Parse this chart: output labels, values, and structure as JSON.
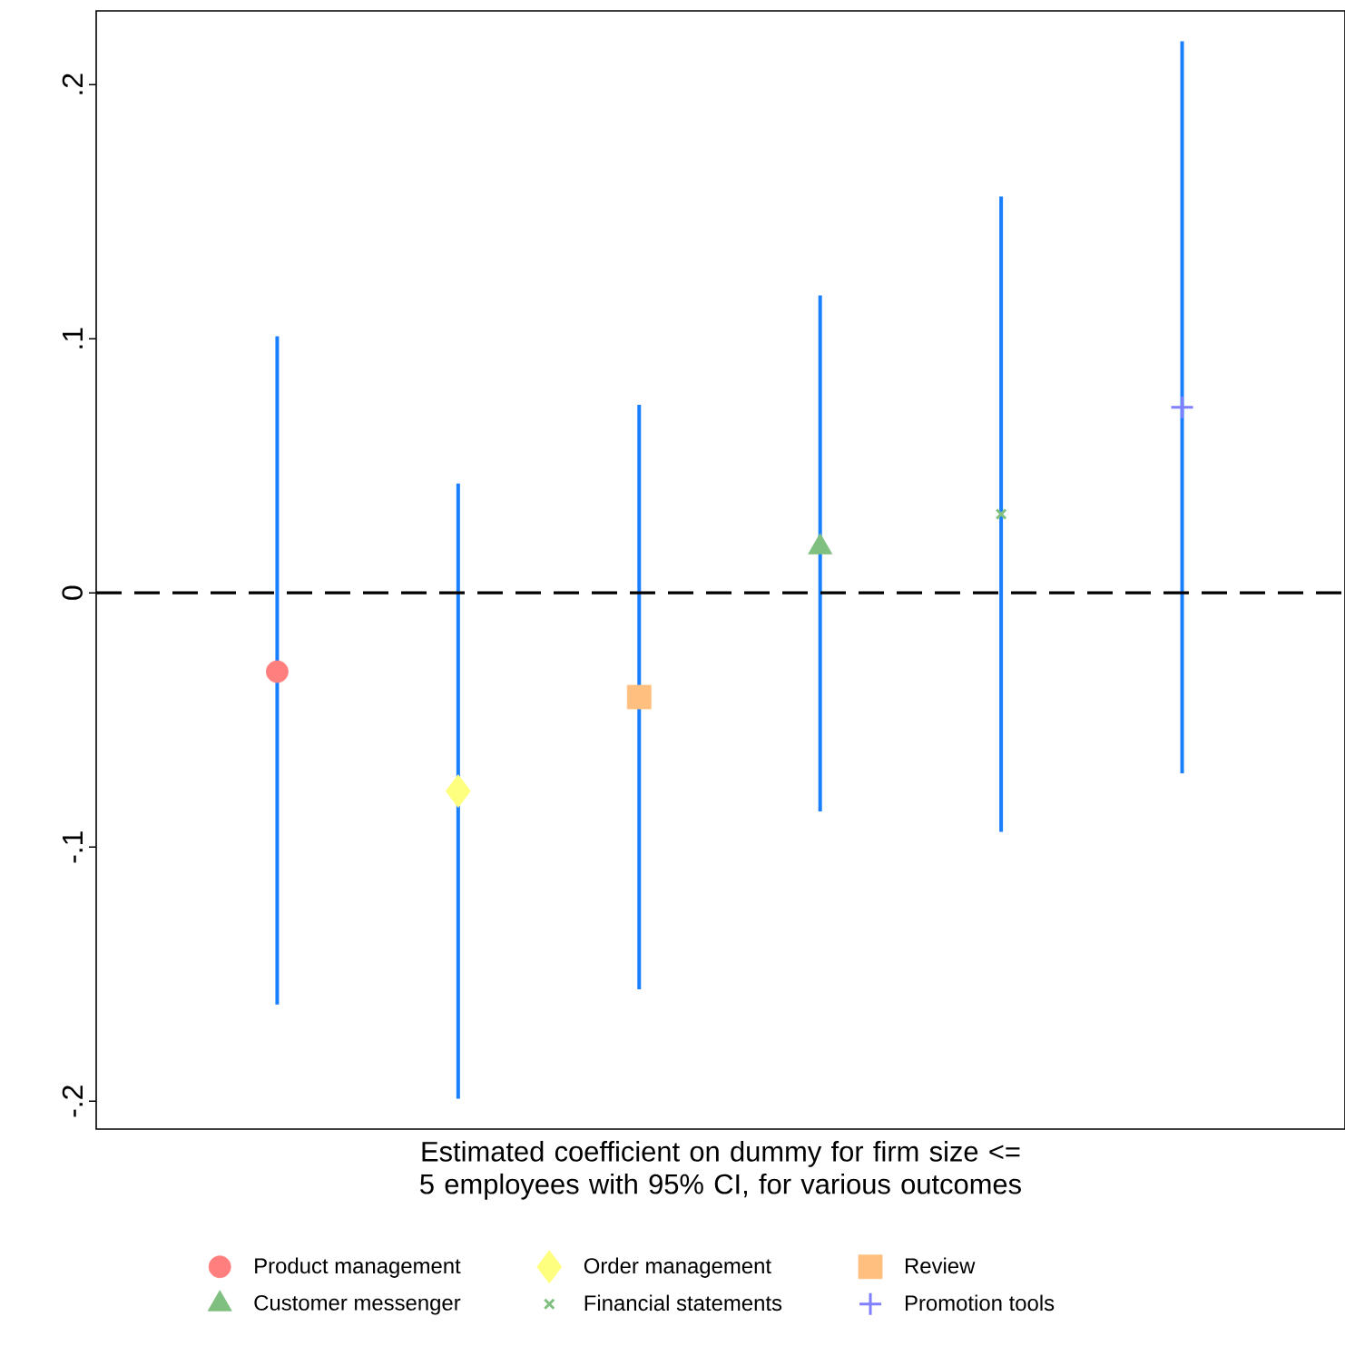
{
  "chart_data": {
    "type": "scatter",
    "xlabel": "Estimated coefficient on dummy for firm size <= 5 employees with 95% CI, for various outcomes",
    "categories": [
      null,
      null,
      null,
      null,
      null,
      null
    ],
    "series": [
      {
        "name": "Product management",
        "color": "#ff7f7f",
        "marker": "circle",
        "values": [
          -0.031,
          null,
          null,
          null,
          null,
          null
        ],
        "errors": [
          [
            -0.162,
            0.101
          ],
          null,
          null,
          null,
          null,
          null
        ]
      },
      {
        "name": "Order management",
        "color": "#ffff7f",
        "marker": "diamond",
        "values": [
          null,
          -0.078,
          null,
          null,
          null,
          null
        ],
        "errors": [
          null,
          [
            -0.199,
            0.043
          ],
          null,
          null,
          null,
          null
        ]
      },
      {
        "name": "Review",
        "color": "#ffbf7f",
        "marker": "square",
        "values": [
          null,
          null,
          -0.041,
          null,
          null,
          null
        ],
        "errors": [
          null,
          null,
          [
            -0.156,
            0.074
          ],
          null,
          null,
          null
        ]
      },
      {
        "name": "Customer messenger",
        "color": "#7fbf7f",
        "marker": "triangle",
        "values": [
          null,
          null,
          null,
          0.018,
          null,
          null
        ],
        "errors": [
          null,
          null,
          null,
          [
            -0.086,
            0.117
          ],
          null,
          null
        ]
      },
      {
        "name": "Financial statements",
        "color": "#7fbf7f",
        "marker": "cross",
        "values": [
          null,
          null,
          null,
          null,
          0.031,
          null
        ],
        "errors": [
          null,
          null,
          null,
          null,
          [
            -0.094,
            0.156
          ],
          null
        ]
      },
      {
        "name": "Promotion tools",
        "color": "#7f7fff",
        "marker": "plus",
        "values": [
          null,
          null,
          null,
          null,
          null,
          0.073
        ],
        "errors": [
          null,
          null,
          null,
          null,
          null,
          [
            -0.071,
            0.217
          ]
        ]
      }
    ],
    "ylim": [
      -0.211,
      0.229
    ],
    "yticks": [
      {
        "value": -0.2,
        "label": "-.2"
      },
      {
        "value": -0.1,
        "label": "-.1"
      },
      0,
      {
        "value": 0.1,
        "label": ".1"
      },
      {
        "value": 0.2,
        "label": ".2"
      }
    ],
    "ref_lines": [
      {
        "axis": "y",
        "value": 0,
        "color": "#000000",
        "line_style": "dashed"
      }
    ],
    "legend": "bottom",
    "tick_labels": "y",
    "grid": false
  }
}
